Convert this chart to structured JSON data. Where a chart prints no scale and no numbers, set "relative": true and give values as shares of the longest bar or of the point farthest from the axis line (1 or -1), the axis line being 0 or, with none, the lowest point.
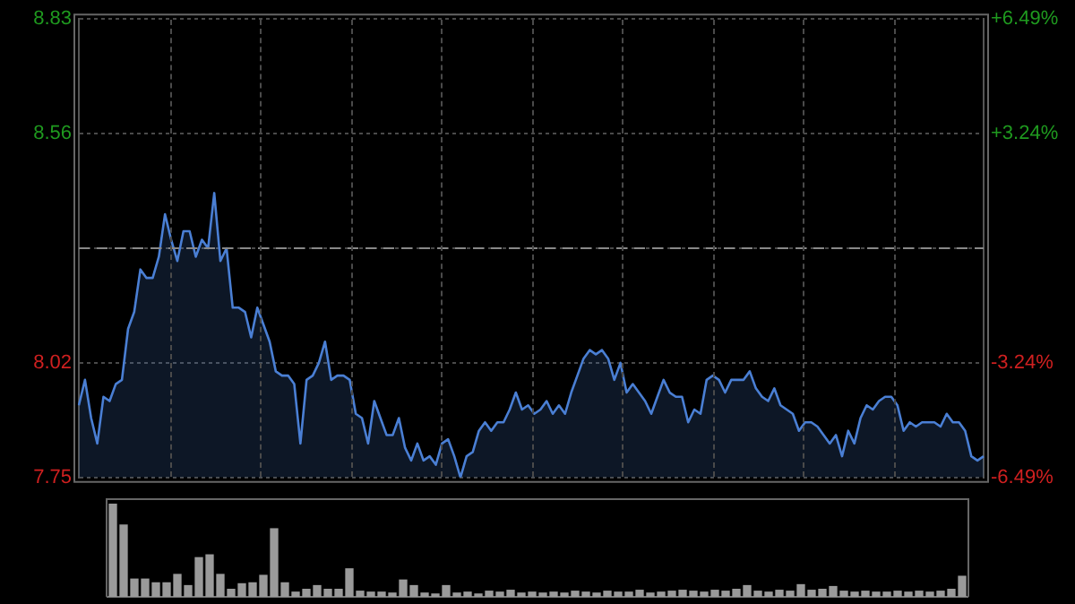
{
  "chart_data": [
    {
      "type": "area",
      "color": "#4a7fd4",
      "categories": [
        null,
        null,
        null,
        null,
        null,
        null,
        null,
        null,
        null,
        null,
        null,
        null,
        null,
        null,
        null,
        null,
        null,
        null,
        null,
        null,
        null,
        null,
        null,
        null,
        null,
        null,
        null,
        null,
        null,
        null,
        null,
        null,
        null,
        null,
        null,
        null,
        null,
        null,
        null,
        null,
        null,
        null,
        null,
        null,
        null,
        null,
        null,
        null,
        null,
        null,
        null,
        null,
        null,
        null,
        null,
        null,
        null,
        null,
        null,
        null,
        null,
        null,
        null,
        null,
        null,
        null,
        null,
        null,
        null,
        null,
        null,
        null,
        null,
        null,
        null,
        null,
        null,
        null,
        null,
        null,
        null,
        null,
        null,
        null,
        null,
        null,
        null,
        null,
        null,
        null,
        null,
        null,
        null,
        null,
        null,
        null,
        null,
        null,
        null,
        null,
        null,
        null,
        null,
        null,
        null,
        null,
        null,
        null,
        null,
        null,
        null,
        null,
        null,
        null,
        null,
        null,
        null,
        null,
        null,
        null,
        null,
        null,
        null,
        null,
        null,
        null,
        null,
        null,
        null,
        null,
        null,
        null,
        null,
        null,
        null,
        null,
        null,
        null,
        null,
        null,
        null,
        null,
        null,
        null,
        null,
        null,
        null,
        null
      ],
      "values": [
        7.92,
        7.98,
        7.89,
        7.83,
        7.94,
        7.93,
        7.97,
        7.98,
        8.1,
        8.14,
        8.24,
        8.22,
        8.22,
        8.27,
        8.37,
        8.31,
        8.26,
        8.33,
        8.33,
        8.27,
        8.31,
        8.29,
        8.42,
        8.26,
        8.29,
        8.15,
        8.15,
        8.14,
        8.08,
        8.15,
        8.11,
        8.07,
        8.0,
        7.99,
        7.99,
        7.97,
        7.83,
        7.98,
        7.99,
        8.02,
        8.07,
        7.98,
        7.99,
        7.99,
        7.98,
        7.9,
        7.89,
        7.83,
        7.93,
        7.89,
        7.85,
        7.85,
        7.89,
        7.82,
        7.79,
        7.83,
        7.79,
        7.8,
        7.78,
        7.83,
        7.84,
        7.8,
        7.75,
        7.8,
        7.81,
        7.86,
        7.88,
        7.86,
        7.88,
        7.88,
        7.91,
        7.95,
        7.91,
        7.92,
        7.9,
        7.91,
        7.93,
        7.9,
        7.92,
        7.9,
        7.95,
        7.99,
        8.03,
        8.05,
        8.04,
        8.05,
        8.03,
        7.98,
        8.02,
        7.95,
        7.97,
        7.95,
        7.93,
        7.9,
        7.94,
        7.98,
        7.95,
        7.94,
        7.94,
        7.88,
        7.91,
        7.9,
        7.98,
        7.99,
        7.98,
        7.95,
        7.98,
        7.98,
        7.98,
        8.0,
        7.96,
        7.94,
        7.93,
        7.96,
        7.92,
        7.91,
        7.9,
        7.86,
        7.88,
        7.88,
        7.87,
        7.85,
        7.83,
        7.85,
        7.8,
        7.86,
        7.83,
        7.89,
        7.92,
        7.91,
        7.93,
        7.94,
        7.94,
        7.92,
        7.86,
        7.88,
        7.87,
        7.88,
        7.88,
        7.88,
        7.87,
        7.9,
        7.88,
        7.88,
        7.86,
        7.8,
        7.79,
        7.8
      ],
      "ylim": [
        7.75,
        8.83
      ],
      "yticks": [
        8.83,
        8.56,
        {
          "value": 8.29,
          "label": null
        },
        8.02,
        7.75
      ],
      "y2lim": [
        -6.49,
        6.49
      ],
      "y2ticks": [
        {
          "value": 6.49,
          "label": "+6.49%"
        },
        {
          "value": 3.24,
          "label": "+3.24%"
        },
        {
          "value": -3.24,
          "label": "-3.24%"
        },
        {
          "value": -6.49,
          "label": "-6.49%"
        }
      ],
      "ref_lines": [
        {
          "axis": "y",
          "value": 8.29,
          "color": "#888888",
          "line_style": "dashed"
        }
      ],
      "grid": "y",
      "legend": false,
      "marker": "none",
      "line_style": "solid",
      "tick_labels": "y"
    },
    {
      "type": "bar",
      "relative": true,
      "color": "#9a9a9a",
      "legend": false,
      "categories": [
        null,
        null,
        null,
        null,
        null,
        null,
        null,
        null,
        null,
        null,
        null,
        null,
        null,
        null,
        null,
        null,
        null,
        null,
        null,
        null,
        null,
        null,
        null,
        null,
        null,
        null,
        null,
        null,
        null,
        null,
        null,
        null,
        null,
        null,
        null,
        null,
        null,
        null,
        null,
        null,
        null,
        null,
        null,
        null,
        null,
        null,
        null,
        null,
        null,
        null,
        null,
        null,
        null,
        null,
        null,
        null,
        null,
        null,
        null,
        null,
        null,
        null,
        null,
        null,
        null,
        null,
        null,
        null,
        null,
        null,
        null,
        null,
        null,
        null,
        null,
        null,
        null,
        null,
        null,
        null
      ],
      "values": [
        1.0,
        0.77,
        0.19,
        0.19,
        0.15,
        0.15,
        0.24,
        0.12,
        0.42,
        0.45,
        0.24,
        0.08,
        0.14,
        0.15,
        0.23,
        0.73,
        0.15,
        0.05,
        0.08,
        0.12,
        0.08,
        0.08,
        0.3,
        0.06,
        0.05,
        0.05,
        0.04,
        0.18,
        0.12,
        0.04,
        0.03,
        0.12,
        0.04,
        0.05,
        0.03,
        0.06,
        0.05,
        0.07,
        0.04,
        0.05,
        0.04,
        0.05,
        0.04,
        0.06,
        0.05,
        0.04,
        0.06,
        0.05,
        0.05,
        0.07,
        0.04,
        0.05,
        0.06,
        0.07,
        0.06,
        0.05,
        0.07,
        0.06,
        0.08,
        0.12,
        0.06,
        0.05,
        0.07,
        0.06,
        0.13,
        0.07,
        0.08,
        0.11,
        0.06,
        0.05,
        0.06,
        0.05,
        0.05,
        0.06,
        0.05,
        0.06,
        0.05,
        0.06,
        0.08,
        0.22
      ]
    }
  ]
}
